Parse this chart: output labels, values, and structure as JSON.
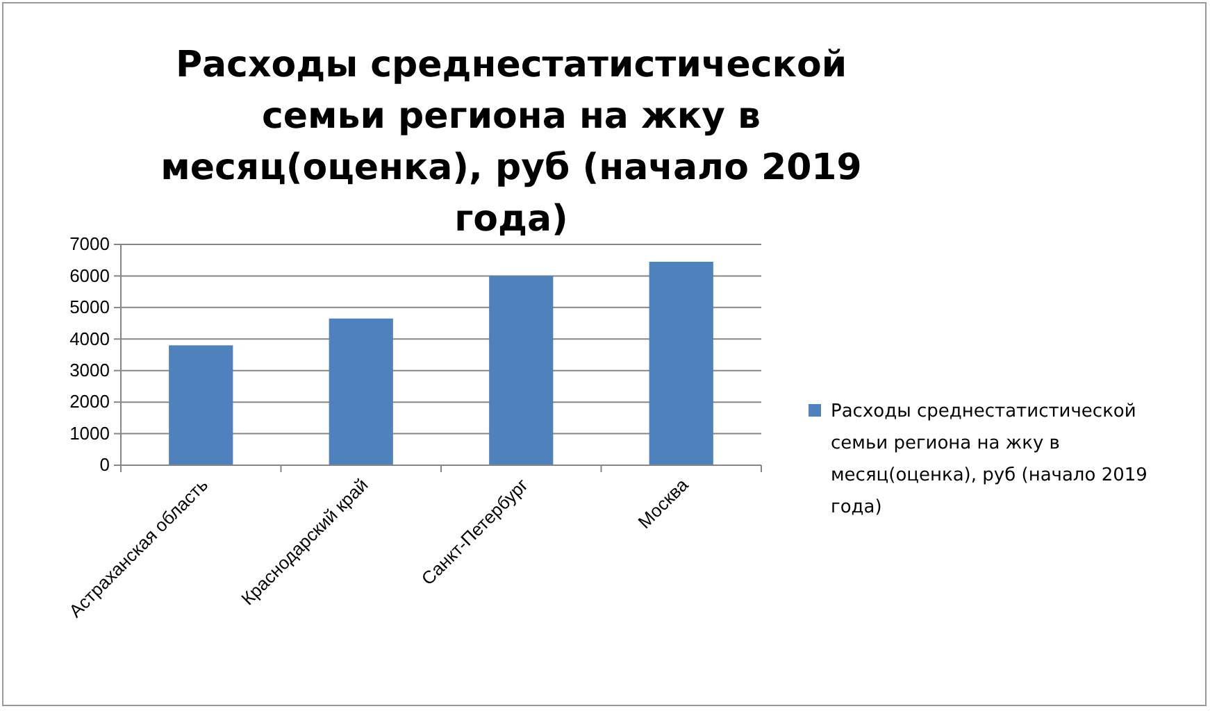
{
  "chart_data": {
    "type": "bar",
    "title": "Расходы среднестатистической семьи региона на жку в месяц(оценка), руб (начало 2019 года)",
    "categories": [
      "Астраханская область",
      "Краснодарский край",
      "Санкт-Петербург",
      "Москва"
    ],
    "series": [
      {
        "name": "Расходы среднестатистической семьи региона на жку в месяц(оценка), руб (начало 2019 года)",
        "color": "#4f81bd",
        "values": [
          3800,
          4650,
          6000,
          6450
        ]
      }
    ],
    "ylim": [
      0,
      7000
    ],
    "yticks": [
      0,
      1000,
      2000,
      3000,
      4000,
      5000,
      6000,
      7000
    ],
    "grid": "y",
    "legend": "right"
  }
}
